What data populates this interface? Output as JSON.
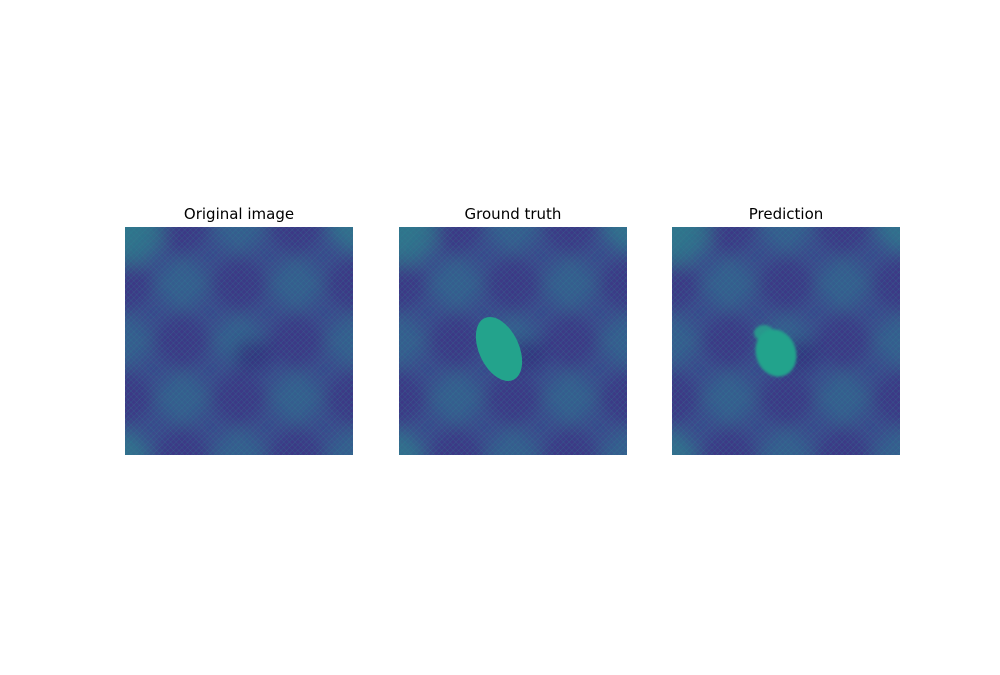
{
  "panels": [
    {
      "id": "original",
      "title": "Original image",
      "overlay": "none"
    },
    {
      "id": "ground_truth",
      "title": "Ground truth",
      "overlay": "ellipse"
    },
    {
      "id": "prediction",
      "title": "Prediction",
      "overlay": "blob"
    }
  ],
  "colors": {
    "background_field": "#3b4a8c",
    "dark_diamond": "#3a2f82",
    "light_band": "#2f6f8f",
    "segmentation": "#23a38c"
  }
}
